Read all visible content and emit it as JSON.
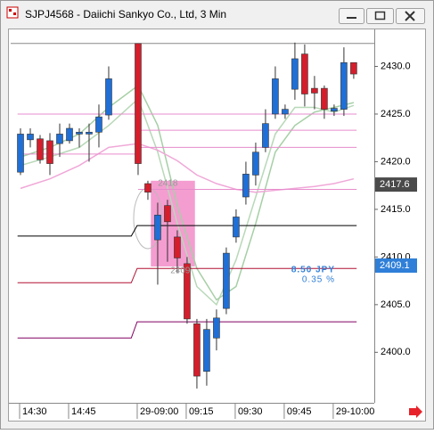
{
  "chart_data": {
    "type": "candlestick",
    "title": "SJPJ4568 - Daiichi Sankyo Co., Ltd, 3 Min",
    "xlim": [
      -1,
      36.1
    ],
    "ylim": [
      2394.7,
      2433.6
    ],
    "yticks": [
      {
        "value": 2400,
        "label": "2400.0"
      },
      {
        "value": 2405,
        "label": "2405.0"
      },
      {
        "value": 2410,
        "label": "2410.0"
      },
      {
        "value": 2415,
        "label": "2415.0"
      },
      {
        "value": 2420,
        "label": "2420.0"
      },
      {
        "value": 2425,
        "label": "2425.0"
      },
      {
        "value": 2430,
        "label": "2430.0"
      }
    ],
    "xticks": [
      {
        "value": 0,
        "label": "14:30"
      },
      {
        "value": 5,
        "label": "14:45"
      },
      {
        "value": 12,
        "label": "29-09:00"
      },
      {
        "value": 17,
        "label": "09:15"
      },
      {
        "value": 22,
        "label": "09:30"
      },
      {
        "value": 27,
        "label": "09:45"
      },
      {
        "value": 32,
        "label": "29-10:00"
      }
    ],
    "up_color": "#1f6fd6",
    "down_color": "#d41e2c",
    "candles": {
      "x": [
        0,
        1,
        2,
        3,
        4,
        5,
        6,
        7,
        8,
        9,
        12,
        13,
        14,
        15,
        16,
        17,
        18,
        19,
        20,
        21,
        22,
        23,
        24,
        25,
        26,
        27,
        28,
        29,
        30,
        31,
        32,
        33,
        34
      ],
      "open": [
        2418.9,
        2422.3,
        2422.4,
        2422.2,
        2421.9,
        2422.2,
        2422.9,
        2422.9,
        2423.1,
        2424.9,
        2432.4,
        2417.7,
        2411.8,
        2415.4,
        2412.1,
        2409.3,
        2403.0,
        2398.0,
        2401.5,
        2404.6,
        2412.1,
        2416.3,
        2418.6,
        2421.5,
        2425.0,
        2425.0,
        2427.6,
        2431.3,
        2427.7,
        2427.7,
        2425.3,
        2425.5,
        2430.4
      ],
      "high": [
        2423.5,
        2423.5,
        2422.8,
        2423.0,
        2424.0,
        2424.0,
        2423.5,
        2424.0,
        2426.0,
        2430.0,
        2432.4,
        2418.0,
        2415.7,
        2416.0,
        2412.8,
        2410.0,
        2403.5,
        2403.5,
        2404.5,
        2411.0,
        2415.0,
        2420.0,
        2422.0,
        2425.5,
        2430.0,
        2426.0,
        2432.5,
        2432.3,
        2429.0,
        2428.0,
        2426.0,
        2432.0,
        2430.4
      ],
      "low": [
        2418.6,
        2421.5,
        2419.8,
        2418.6,
        2420.5,
        2421.9,
        2421.5,
        2420.0,
        2421.5,
        2424.4,
        2418.6,
        2416.0,
        2407.1,
        2409.5,
        2408.3,
        2403.0,
        2396.2,
        2396.5,
        2400.2,
        2404.0,
        2411.5,
        2415.5,
        2417.5,
        2421.0,
        2424.5,
        2424.5,
        2426.5,
        2425.8,
        2425.5,
        2424.5,
        2424.8,
        2424.8,
        2428.7
      ],
      "close": [
        2422.9,
        2422.9,
        2420.2,
        2419.8,
        2422.9,
        2423.5,
        2423.1,
        2423.1,
        2424.7,
        2428.7,
        2419.8,
        2416.8,
        2414.4,
        2413.7,
        2409.9,
        2403.5,
        2397.5,
        2402.4,
        2403.6,
        2410.4,
        2414.2,
        2418.7,
        2421.0,
        2424.0,
        2428.7,
        2425.5,
        2430.8,
        2427.1,
        2427.2,
        2425.5,
        2425.6,
        2430.4,
        2429.2
      ]
    },
    "ma_x": [
      0,
      3,
      6,
      9,
      12,
      14,
      16,
      18,
      20,
      22,
      24,
      26,
      28,
      30,
      32,
      34
    ],
    "moving_averages": [
      {
        "color": "#b8d8b8",
        "values": [
          2419.6,
          2420.5,
          2421.5,
          2423.8,
          2426.6,
          2421.0,
          2413.5,
          2406.9,
          2405.0,
          2409.7,
          2416.3,
          2422.9,
          2425.7,
          2425.7,
          2425.2,
          2425.9
        ]
      },
      {
        "color": "#a6cfa6",
        "values": [
          2420.5,
          2421.5,
          2422.9,
          2425.7,
          2428.0,
          2423.8,
          2415.4,
          2408.8,
          2405.5,
          2406.9,
          2413.5,
          2421.0,
          2423.8,
          2425.2,
          2425.7,
          2426.2
        ]
      },
      {
        "color": "#f0a8d8",
        "values": [
          2417.2,
          2418.2,
          2419.6,
          2421.5,
          2421.9,
          2421.2,
          2420.1,
          2418.6,
          2417.7,
          2417.1,
          2416.8,
          2417.0,
          2417.2,
          2417.4,
          2417.7,
          2418.2
        ]
      }
    ],
    "levels": [
      {
        "color": "#888888",
        "x": [
          -1,
          36.1
        ],
        "values": [
          2432.4,
          2432.4
        ]
      },
      {
        "color": "#e68ccc",
        "x": [
          -0.3,
          34.3
        ],
        "values": [
          2425,
          2425
        ]
      },
      {
        "color": "#e68ccc",
        "x": [
          12,
          34.3
        ],
        "values": [
          2423.3,
          2423.3
        ]
      },
      {
        "color": "#e68ccc",
        "x": [
          12,
          34.3
        ],
        "values": [
          2421.5,
          2421.5
        ]
      },
      {
        "color": "#e68ccc",
        "x": [
          -0.3,
          12
        ],
        "values": [
          2420.8,
          2420.8
        ]
      },
      {
        "color": "#e68ccc",
        "x": [
          12,
          34.3
        ],
        "values": [
          2417.1,
          2417.1
        ]
      },
      {
        "color": "#000000",
        "x": [
          -0.3,
          11.3,
          11.9,
          34.3
        ],
        "values": [
          2412.2,
          2412.2,
          2413.3,
          2413.3
        ]
      },
      {
        "color": "#b01030",
        "x": [
          -0.3,
          11.3,
          11.9,
          34.3
        ],
        "values": [
          2407.3,
          2407.3,
          2408.8,
          2408.8
        ]
      },
      {
        "color": "#800060",
        "x": [
          -0.3,
          11.3,
          11.9,
          34.3
        ],
        "values": [
          2401.5,
          2401.5,
          2403.2,
          2403.2
        ]
      }
    ],
    "measure": {
      "x": [
        13.3,
        17.8
      ],
      "from": 2418,
      "to": 2409,
      "change": "8.50 JPY",
      "percent": "0.35 %",
      "color": "#f07cc0"
    },
    "price_tags": [
      {
        "value": 2417.6,
        "color": "#4a4a4a",
        "text_color": "#ffffff"
      },
      {
        "value": 2409.1,
        "color": "#2f7fd8",
        "text_color": "#ffffff"
      }
    ]
  }
}
